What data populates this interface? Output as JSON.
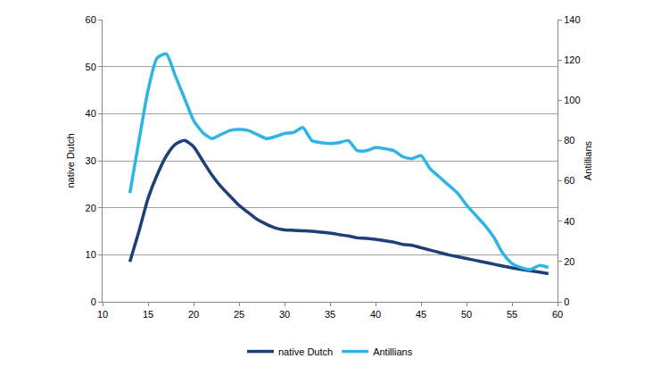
{
  "chart_data": {
    "type": "line",
    "x": [
      13,
      14,
      15,
      16,
      17,
      18,
      19,
      20,
      21,
      22,
      23,
      24,
      25,
      26,
      27,
      28,
      29,
      30,
      31,
      32,
      33,
      34,
      35,
      36,
      37,
      38,
      39,
      40,
      41,
      42,
      43,
      44,
      45,
      46,
      47,
      48,
      49,
      50,
      51,
      52,
      53,
      54,
      55,
      56,
      57,
      58,
      59
    ],
    "series": [
      {
        "name": "native Dutch",
        "color": "#1f3f77",
        "axis": "y",
        "values": [
          8.5,
          15,
          22,
          27,
          31,
          33.5,
          34.3,
          33,
          30,
          27,
          24.5,
          22.5,
          20.5,
          19,
          17.5,
          16.5,
          15.7,
          15.3,
          15.2,
          15.1,
          15,
          14.8,
          14.6,
          14.3,
          14,
          13.6,
          13.5,
          13.3,
          13,
          12.7,
          12.2,
          12,
          11.5,
          11,
          10.5,
          10,
          9.6,
          9.2,
          8.8,
          8.4,
          8,
          7.6,
          7.2,
          6.9,
          6.6,
          6.3,
          6
        ]
      },
      {
        "name": "Antillians",
        "color": "#2fb4e6",
        "axis": "y2",
        "values": [
          54,
          80,
          105,
          121,
          123,
          112,
          101,
          90,
          84,
          81,
          83,
          85,
          85.5,
          85,
          83,
          81,
          82,
          83.5,
          84,
          86.5,
          80,
          79,
          78.5,
          79,
          80,
          75,
          75,
          76.5,
          76,
          75,
          72,
          71,
          72.5,
          66,
          62,
          58,
          54,
          48,
          43,
          38,
          32,
          24,
          19,
          17,
          16,
          18,
          17
        ]
      }
    ],
    "y_label": "native Dutch",
    "y2_label": "Antillians",
    "xlim": [
      10,
      60
    ],
    "xticks": [
      10,
      15,
      20,
      25,
      30,
      35,
      40,
      45,
      50,
      55,
      60
    ],
    "ylim": [
      0,
      60
    ],
    "yticks": [
      0,
      10,
      20,
      30,
      40,
      50,
      60
    ],
    "y2lim": [
      0,
      140
    ],
    "y2ticks": [
      0,
      20,
      40,
      60,
      80,
      100,
      120,
      140
    ],
    "grid": true,
    "legend": "bottom"
  }
}
